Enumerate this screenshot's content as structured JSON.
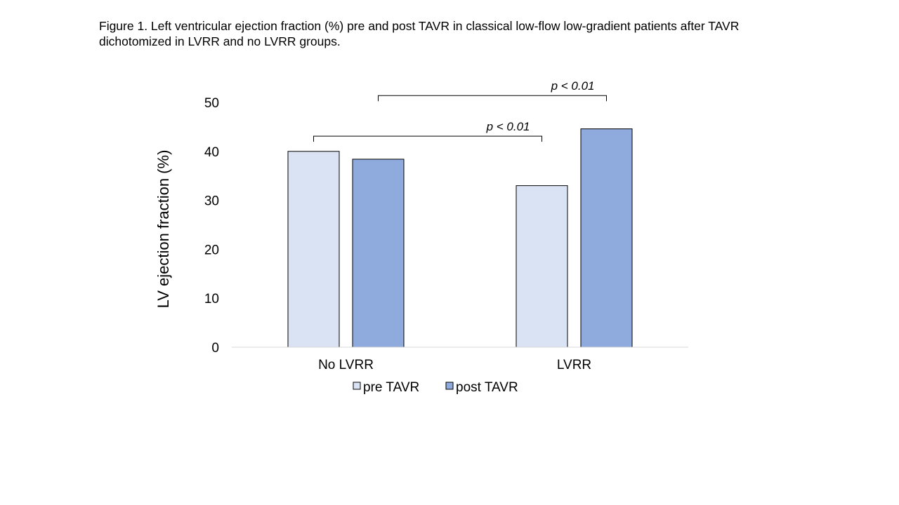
{
  "caption": {
    "line1": "Figure 1. Left ventricular ejection fraction (%) pre and post TAVR in classical low-flow low-gradient patients after TAVR",
    "line2": "dichotomized in LVRR and no LVRR groups."
  },
  "chart_data": {
    "type": "bar",
    "categories": [
      "No LVRR",
      "LVRR"
    ],
    "series": [
      {
        "name": "pre TAVR",
        "values": [
          40,
          33
        ],
        "color": "#dae3f3"
      },
      {
        "name": "post TAVR",
        "values": [
          38.4,
          44.6
        ],
        "color": "#8faadc"
      }
    ],
    "ylabel": "LV ejection fraction (%)",
    "ylim": [
      0,
      50
    ],
    "yticks": [
      0,
      10,
      20,
      30,
      40,
      50
    ],
    "grid": false,
    "legend_position": "bottom",
    "annotations": [
      {
        "text": "p < 0.01",
        "from": [
          "No LVRR",
          "pre TAVR"
        ],
        "to": [
          "LVRR",
          "pre TAVR"
        ]
      },
      {
        "text": "p < 0.01",
        "from": [
          "No LVRR",
          "post TAVR"
        ],
        "to": [
          "LVRR",
          "post TAVR"
        ]
      }
    ]
  }
}
